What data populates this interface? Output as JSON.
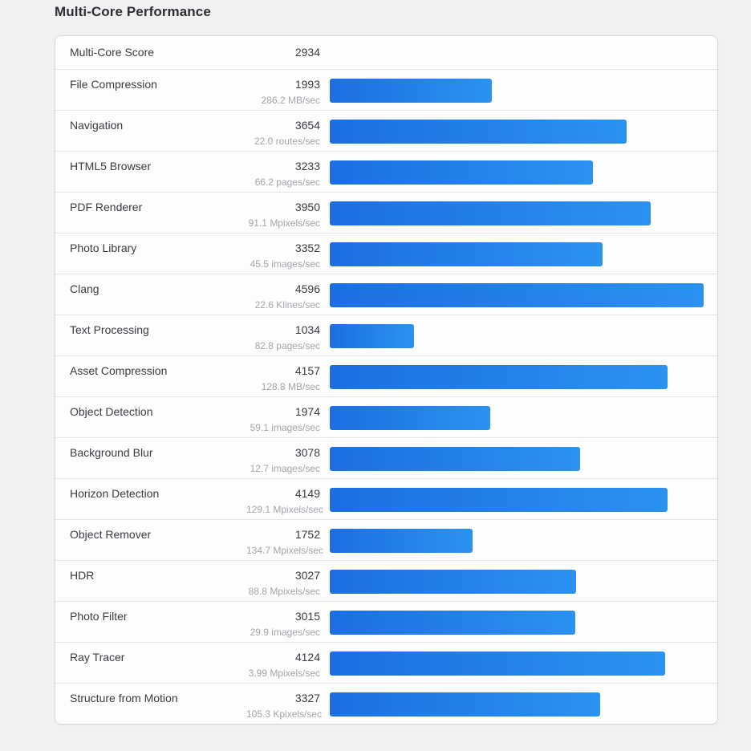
{
  "page": {
    "title": "Multi-Core Performance"
  },
  "summary": {
    "label": "Multi-Core Score",
    "score": "2934"
  },
  "colors": {
    "bar_gradient_start": "#1c6ee2",
    "bar_gradient_end": "#2b92f0",
    "page_background": "#f1f1f2",
    "card_background": "#fdfdfd",
    "score_text": "#3b3b43",
    "rate_text": "#a4a4ac"
  },
  "chart_data": {
    "type": "bar",
    "orientation": "horizontal",
    "title": "Multi-Core Performance",
    "summary_label": "Multi-Core Score",
    "summary_score": 2934,
    "bar_scale_max": 4596,
    "legend": "none",
    "grid": "off",
    "categories": [
      "File Compression",
      "Navigation",
      "HTML5 Browser",
      "PDF Renderer",
      "Photo Library",
      "Clang",
      "Text Processing",
      "Asset Compression",
      "Object Detection",
      "Background Blur",
      "Horizon Detection",
      "Object Remover",
      "HDR",
      "Photo Filter",
      "Ray Tracer",
      "Structure from Motion"
    ],
    "values": [
      1993,
      3654,
      3233,
      3950,
      3352,
      4596,
      1034,
      4157,
      1974,
      3078,
      4149,
      1752,
      3027,
      3015,
      4124,
      3327
    ],
    "rates": [
      "286.2 MB/sec",
      "22.0 routes/sec",
      "66.2 pages/sec",
      "91.1 Mpixels/sec",
      "45.5 images/sec",
      "22.6 Klines/sec",
      "82.8 pages/sec",
      "128.8 MB/sec",
      "59.1 images/sec",
      "12.7 images/sec",
      "129.1 Mpixels/sec",
      "134.7 Mpixels/sec",
      "88.8 Mpixels/sec",
      "29.9 images/sec",
      "3.99 Mpixels/sec",
      "105.3 Kpixels/sec"
    ]
  }
}
